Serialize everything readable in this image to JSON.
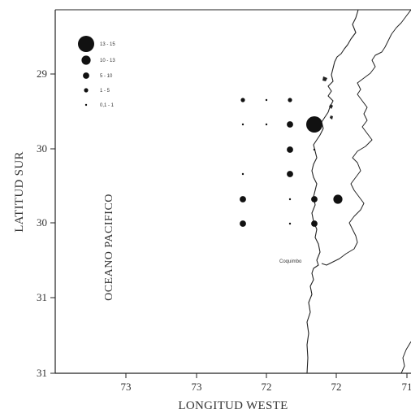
{
  "map": {
    "type": "bubble map",
    "ylabel": "LATITUD SUR",
    "xlabel": "LONGITUD WESTE",
    "ocean_label": "OCEANO PACIFICO",
    "place_label": "Coquimbo",
    "y_ticks": [
      "29",
      "30",
      "30",
      "31",
      "31"
    ],
    "x_ticks": [
      "73",
      "73",
      "72",
      "72",
      "71"
    ],
    "legend": [
      {
        "label": "13 - 15",
        "class": 5
      },
      {
        "label": "10 - 13",
        "class": 4
      },
      {
        "label": "5 - 10",
        "class": 3
      },
      {
        "label": "1 - 5",
        "class": 2
      },
      {
        "label": "0,1 - 1",
        "class": 1
      }
    ],
    "colors": {
      "marker": "#111111",
      "coast": "#222222",
      "frame": "#222222"
    }
  },
  "chart_data": {
    "type": "scatter",
    "xlabel": "LONGITUD WESTE",
    "ylabel": "LATITUD SUR",
    "x_tick_labels": [
      "73",
      "73",
      "72",
      "72",
      "71"
    ],
    "y_tick_labels": [
      "29",
      "30",
      "30",
      "31",
      "31"
    ],
    "grid": false,
    "legend_position": "top-left",
    "points": [
      {
        "col": 1,
        "row": 1,
        "class": 2
      },
      {
        "col": 2,
        "row": 1,
        "class": 1
      },
      {
        "col": 3,
        "row": 1,
        "class": 2
      },
      {
        "col": 1,
        "row": 2,
        "class": 1
      },
      {
        "col": 2,
        "row": 2,
        "class": 1
      },
      {
        "col": 3,
        "row": 2,
        "class": 3
      },
      {
        "col": 4,
        "row": 2,
        "class": 5
      },
      {
        "col": 3,
        "row": 3,
        "class": 3
      },
      {
        "col": 4,
        "row": 3,
        "class": 1
      },
      {
        "col": 1,
        "row": 4,
        "class": 1
      },
      {
        "col": 3,
        "row": 4,
        "class": 3
      },
      {
        "col": 1,
        "row": 5,
        "class": 3
      },
      {
        "col": 3,
        "row": 5,
        "class": 1
      },
      {
        "col": 4,
        "row": 5,
        "class": 3
      },
      {
        "col": 5,
        "row": 5,
        "class": 4
      },
      {
        "col": 1,
        "row": 6,
        "class": 3
      },
      {
        "col": 3,
        "row": 6,
        "class": 1
      },
      {
        "col": 4,
        "row": 6,
        "class": 3
      }
    ]
  }
}
